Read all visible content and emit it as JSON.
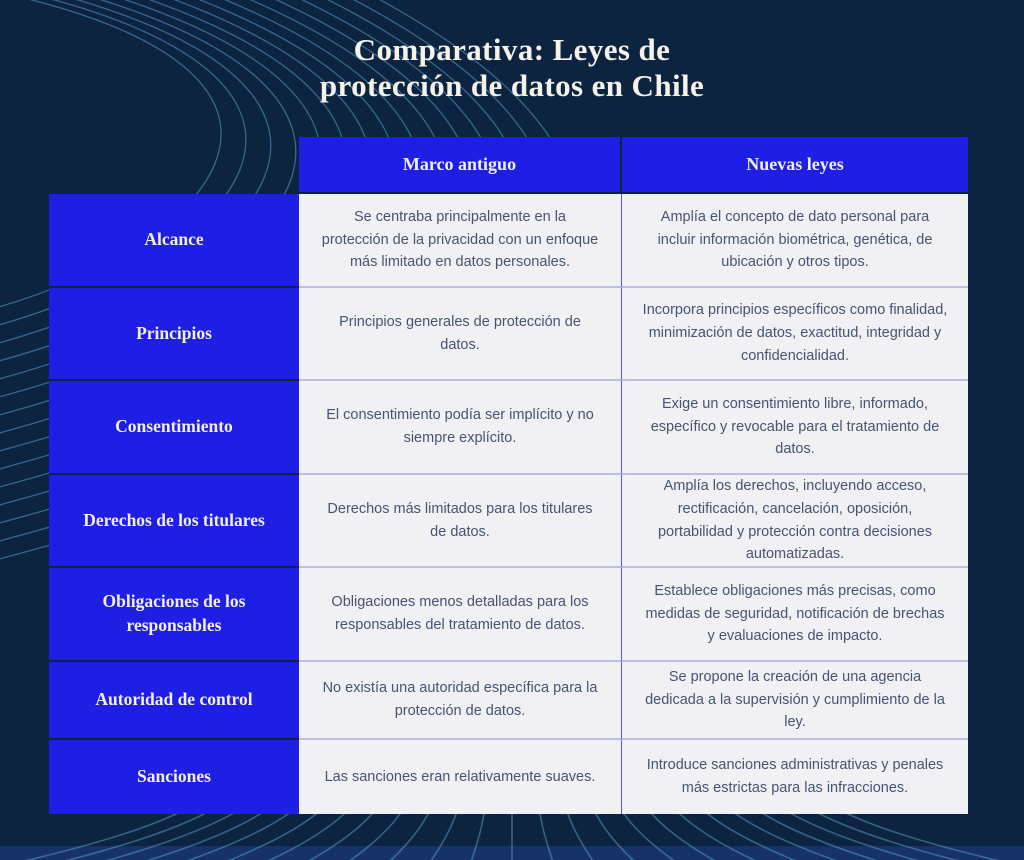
{
  "title": {
    "line1": "Comparativa: Leyes de",
    "line2": "protección de datos en Chile"
  },
  "table": {
    "headers": {
      "old": "Marco antiguo",
      "new": "Nuevas leyes"
    },
    "rows": [
      {
        "label": "Alcance",
        "old": "Se centraba principalmente en la protección de la privacidad con un enfoque más limitado en datos personales.",
        "new": "Amplía el concepto de dato personal para incluir información biométrica, genética, de ubicación y otros tipos."
      },
      {
        "label": "Principios",
        "old": "Principios generales de protección de datos.",
        "new": "Incorpora principios específicos como finalidad, minimización de datos, exactitud, integridad y confidencialidad."
      },
      {
        "label": "Consentimiento",
        "old": "El consentimiento podía ser implícito y no siempre explícito.",
        "new": "Exige un consentimiento libre, informado, específico y revocable para el tratamiento de datos."
      },
      {
        "label": "Derechos de los titulares",
        "old": "Derechos más limitados para los titulares de datos.",
        "new": "Amplía los derechos, incluyendo acceso, rectificación, cancelación, oposición, portabilidad y protección contra decisiones automatizadas."
      },
      {
        "label": "Obligaciones de los responsables",
        "old": "Obligaciones menos detalladas para los responsables del tratamiento de datos.",
        "new": "Establece obligaciones más precisas, como medidas de seguridad, notificación de brechas y evaluaciones de impacto."
      },
      {
        "label": "Autoridad de control",
        "old": "No existía una autoridad específica para la protección de datos.",
        "new": "Se propone la creación de una agencia dedicada a la supervisión y cumplimiento de la ley."
      },
      {
        "label": "Sanciones",
        "old": "Las sanciones eran relativamente suaves.",
        "new": "Introduce sanciones administrativas y penales más estrictas para las infracciones."
      }
    ]
  },
  "colors": {
    "background": "#0c2440",
    "accent_blue": "#1e1ee4",
    "cell_background": "#f1f1f3",
    "content_text": "#475371",
    "title_text": "#f5f2ea",
    "wave_line": "#5d9fcd",
    "bottom_strip": "#163269"
  },
  "chart_data": {
    "type": "table",
    "title": "Comparativa: Leyes de protección de datos en Chile",
    "columns": [
      "",
      "Marco antiguo",
      "Nuevas leyes"
    ],
    "rows": [
      [
        "Alcance",
        "Se centraba principalmente en la protección de la privacidad con un enfoque más limitado en datos personales.",
        "Amplía el concepto de dato personal para incluir información biométrica, genética, de ubicación y otros tipos."
      ],
      [
        "Principios",
        "Principios generales de protección de datos.",
        "Incorpora principios específicos como finalidad, minimización de datos, exactitud, integridad y confidencialidad."
      ],
      [
        "Consentimiento",
        "El consentimiento podía ser implícito y no siempre explícito.",
        "Exige un consentimiento libre, informado, específico y revocable para el tratamiento de datos."
      ],
      [
        "Derechos de los titulares",
        "Derechos más limitados para los titulares de datos.",
        "Amplía los derechos, incluyendo acceso, rectificación, cancelación, oposición, portabilidad y protección contra decisiones automatizadas."
      ],
      [
        "Obligaciones de los responsables",
        "Obligaciones menos detalladas para los responsables del tratamiento de datos.",
        "Establece obligaciones más precisas, como medidas de seguridad, notificación de brechas y evaluaciones de impacto."
      ],
      [
        "Autoridad de control",
        "No existía una autoridad específica para la protección de datos.",
        "Se propone la creación de una agencia dedicada a la supervisión y cumplimiento de la ley."
      ],
      [
        "Sanciones",
        "Las sanciones eran relativamente suaves.",
        "Introduce sanciones administrativas y penales más estrictas para las infracciones."
      ]
    ]
  }
}
